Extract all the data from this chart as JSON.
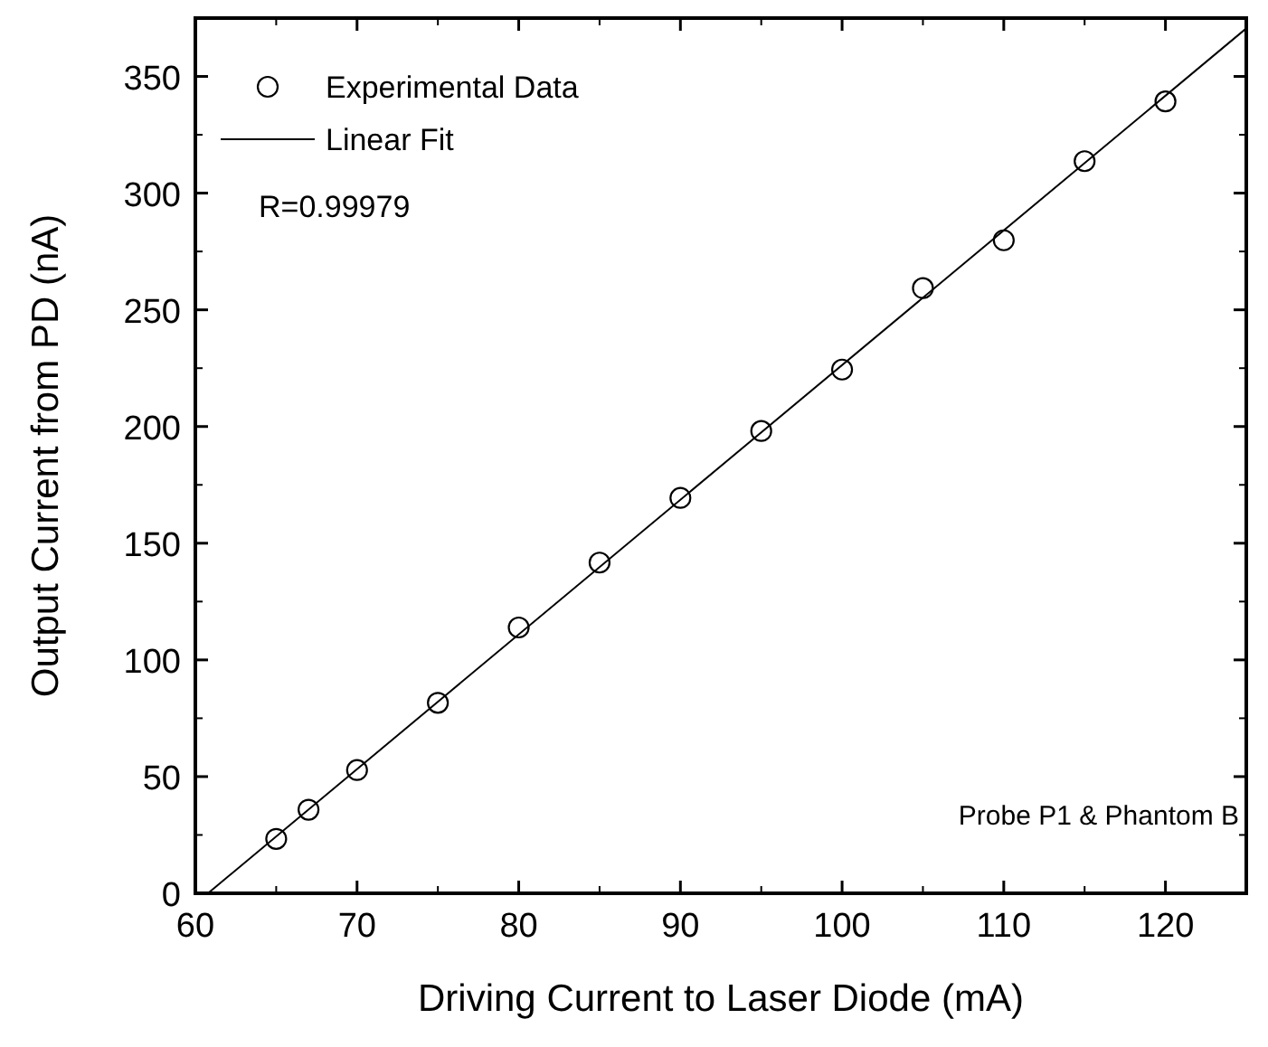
{
  "chart_data": {
    "type": "scatter",
    "xlabel": "Driving Current to Laser Diode (mA)",
    "ylabel": "Output Current from PD (nA)",
    "xlim": [
      60,
      125
    ],
    "ylim": [
      0,
      375
    ],
    "xticks": [
      60,
      70,
      80,
      90,
      100,
      110,
      120
    ],
    "yticks": [
      0,
      50,
      100,
      150,
      200,
      250,
      300,
      350
    ],
    "legend": "top left",
    "grid": false,
    "annotations": [
      "R=0.99979",
      "Probe P1 & Phantom B"
    ],
    "series": [
      {
        "name": "Experimental Data",
        "type": "scatter",
        "marker": "circle",
        "color": "#000000",
        "x": [
          65,
          67,
          70,
          75,
          80,
          85,
          90,
          95,
          100,
          105,
          110,
          115,
          120
        ],
        "values": [
          23.3,
          35.8,
          52.8,
          81.6,
          113.9,
          141.7,
          169.4,
          198.1,
          224.4,
          259.3,
          279.8,
          313.7,
          339.3
        ]
      },
      {
        "name": "Linear Fit",
        "type": "line",
        "marker": "none",
        "line_style": "solid",
        "color": "#000000",
        "x": [
          60.78,
          125
        ],
        "values": [
          0,
          370.6
        ]
      }
    ]
  }
}
